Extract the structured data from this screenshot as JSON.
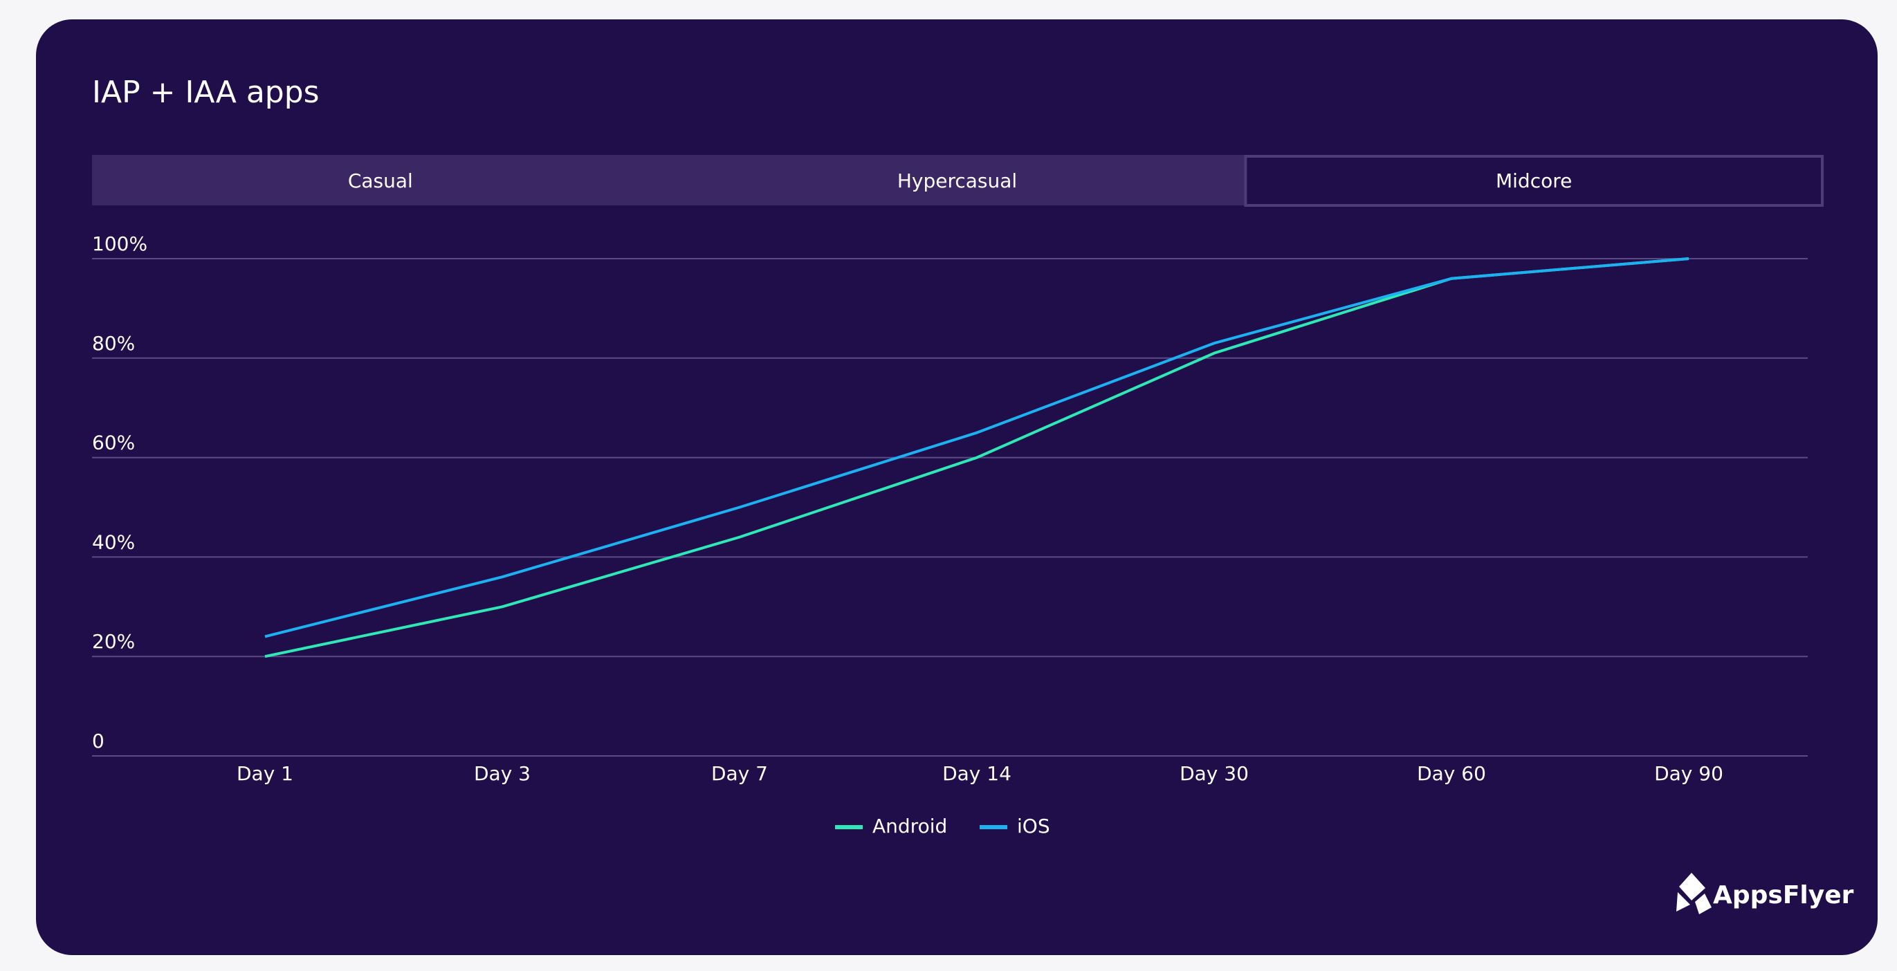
{
  "chart_data": {
    "type": "line",
    "title": "IAP + IAA apps",
    "tabs": [
      "Casual",
      "Hypercasual",
      "Midcore"
    ],
    "selected_tab": 2,
    "categories": [
      "Day 1",
      "Day 3",
      "Day 7",
      "Day 14",
      "Day 30",
      "Day 60",
      "Day 90"
    ],
    "series": [
      {
        "name": "Android",
        "color": "#2ee8b6",
        "values": [
          20,
          30,
          44,
          60,
          81,
          96,
          100
        ]
      },
      {
        "name": "iOS",
        "color": "#1cb2f2",
        "values": [
          24,
          36,
          50,
          65,
          83,
          96,
          100
        ]
      }
    ],
    "ylim": [
      0,
      100
    ],
    "yticks": [
      0,
      {
        "value": 20,
        "label": "20%"
      },
      {
        "value": 40,
        "label": "40%"
      },
      {
        "value": 60,
        "label": "60%"
      },
      {
        "value": 80,
        "label": "80%"
      },
      {
        "value": 100,
        "label": "100%"
      }
    ],
    "grid": true,
    "legend": "bottom",
    "logo": "AppsFlyer"
  }
}
